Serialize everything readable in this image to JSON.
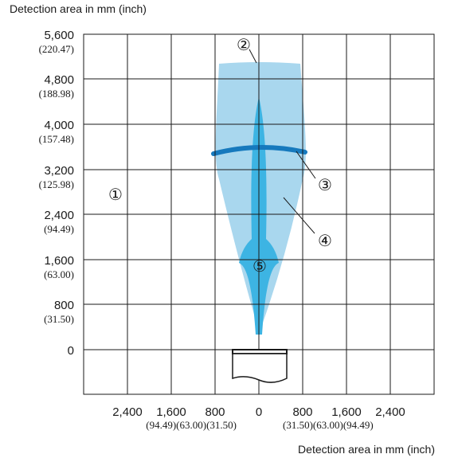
{
  "top_axis_label": "Detection area in mm (inch)",
  "bottom_axis_label": "Detection area in mm (inch)",
  "y_ticks": [
    {
      "mm": "5,600",
      "inch": "(220.47)"
    },
    {
      "mm": "4,800",
      "inch": "(188.98)"
    },
    {
      "mm": "4,000",
      "inch": "(157.48)"
    },
    {
      "mm": "3,200",
      "inch": "(125.98)"
    },
    {
      "mm": "2,400",
      "inch": "(94.49)"
    },
    {
      "mm": "1,600",
      "inch": "(63.00)"
    },
    {
      "mm": "800",
      "inch": "(31.50)"
    },
    {
      "mm": "0",
      "inch": ""
    }
  ],
  "x_ticks_mm": [
    "2,400",
    "1,600",
    "800",
    "0",
    "800",
    "1,600",
    "2,400"
  ],
  "x_ticks_inch_left": "(94.49)(63.00)(31.50)",
  "x_ticks_inch_right": "(31.50)(63.00)(94.49)",
  "callouts": [
    "①",
    "②",
    "③",
    "④",
    "⑤"
  ],
  "colors": {
    "grid": "#1a1a1a",
    "beam_light": "#a9d7ee",
    "beam_dark": "#3db4e3",
    "ring": "#1679bd"
  }
}
